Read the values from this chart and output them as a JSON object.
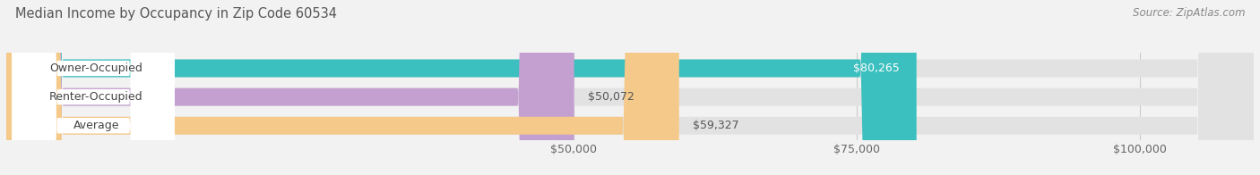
{
  "title": "Median Income by Occupancy in Zip Code 60534",
  "source": "Source: ZipAtlas.com",
  "categories": [
    "Owner-Occupied",
    "Renter-Occupied",
    "Average"
  ],
  "values": [
    80265,
    50072,
    59327
  ],
  "bar_colors": [
    "#3bbfbf",
    "#c4a0d0",
    "#f5c98a"
  ],
  "label_texts": [
    "$80,265",
    "$50,072",
    "$59,327"
  ],
  "label_inside": [
    true,
    false,
    false
  ],
  "x_ticks": [
    50000,
    75000,
    100000
  ],
  "x_tick_labels": [
    "$50,000",
    "$75,000",
    "$100,000"
  ],
  "xlim_min": 0,
  "xlim_max": 110000,
  "bar_height": 0.62,
  "bg_color": "#f2f2f2",
  "bar_bg_color": "#e2e2e2",
  "title_fontsize": 10.5,
  "source_fontsize": 8.5,
  "tick_fontsize": 9,
  "label_fontsize": 9,
  "category_fontsize": 9,
  "pill_color": "white",
  "grid_color": "#cccccc",
  "label_inside_color": "white",
  "label_outside_color": "#555555",
  "category_text_color": "#444444"
}
